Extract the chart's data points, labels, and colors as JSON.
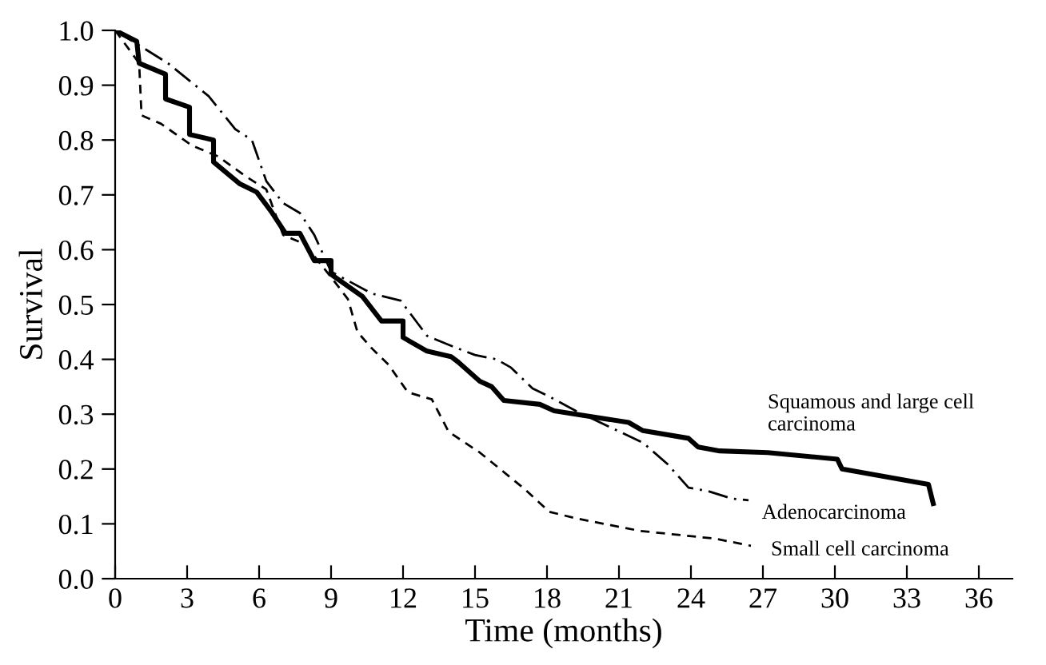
{
  "chart_data": {
    "type": "line",
    "xlabel": "Time (months)",
    "ylabel": "Survival",
    "xlim": [
      0,
      37.4
    ],
    "ylim": [
      0,
      1.0
    ],
    "xticks": [
      0,
      3,
      6,
      9,
      12,
      15,
      18,
      21,
      24,
      27,
      30,
      33,
      36
    ],
    "yticks": [
      {
        "value": 0,
        "label": "0.0"
      },
      {
        "value": 0.1,
        "label": "0.1"
      },
      {
        "value": 0.2,
        "label": "0.2"
      },
      {
        "value": 0.3,
        "label": "0.3"
      },
      {
        "value": 0.4,
        "label": "0.4"
      },
      {
        "value": 0.5,
        "label": "0.5"
      },
      {
        "value": 0.6,
        "label": "0.6"
      },
      {
        "value": 0.7,
        "label": "0.7"
      },
      {
        "value": 0.8,
        "label": "0.8"
      },
      {
        "value": 0.9,
        "label": "0.9"
      },
      {
        "value": 1,
        "label": "1.0"
      }
    ],
    "grid": false,
    "legend": false,
    "marker": "none",
    "series": [
      {
        "name": "Squamous and large cell carcinoma",
        "color": "#000000",
        "line_style": "solid",
        "x": [
          0,
          0.9,
          1,
          2.1,
          2.1,
          3.1,
          3.1,
          4.1,
          4.1,
          5.2,
          5.9,
          6.5,
          7.1,
          7.7,
          8.3,
          9,
          9,
          10.3,
          11.1,
          12,
          12,
          13,
          14,
          14.3,
          15.2,
          15.7,
          16.2,
          17.7,
          18.3,
          19.2,
          21.4,
          22,
          23.9,
          24.3,
          25.2,
          27.2,
          30.1,
          30.3,
          33.9,
          34.1
        ],
        "values": [
          1.0,
          0.98,
          0.94,
          0.92,
          0.875,
          0.86,
          0.81,
          0.8,
          0.76,
          0.72,
          0.705,
          0.67,
          0.63,
          0.63,
          0.58,
          0.58,
          0.555,
          0.515,
          0.47,
          0.47,
          0.44,
          0.415,
          0.405,
          0.395,
          0.36,
          0.35,
          0.325,
          0.318,
          0.306,
          0.3,
          0.285,
          0.27,
          0.256,
          0.24,
          0.233,
          0.23,
          0.218,
          0.2,
          0.172,
          0.137
        ]
      },
      {
        "name": "Adenocarcinoma",
        "color": "#000000",
        "line_style": "dashed",
        "x": [
          0,
          2.2,
          3.9,
          5,
          5.7,
          6.3,
          7,
          7.7,
          8.3,
          9,
          10.7,
          11.9,
          13,
          14.1,
          15,
          15.9,
          16.5,
          17.4,
          18.1,
          19.2,
          22,
          23,
          23.9,
          24.7,
          25.7,
          26.4
        ],
        "values": [
          1.0,
          0.94,
          0.88,
          0.82,
          0.8,
          0.725,
          0.685,
          0.667,
          0.627,
          0.56,
          0.52,
          0.507,
          0.443,
          0.423,
          0.408,
          0.4,
          0.385,
          0.347,
          0.332,
          0.306,
          0.248,
          0.21,
          0.166,
          0.16,
          0.146,
          0.143
        ]
      },
      {
        "name": "Small cell carcinoma",
        "color": "#000000",
        "line_style": "dashed",
        "x": [
          0,
          1,
          1.1,
          1.9,
          3.2,
          4.3,
          5.4,
          6.3,
          7,
          7.9,
          9,
          9.7,
          10.1,
          10.7,
          11.4,
          12.2,
          13.2,
          13.9,
          15.2,
          17,
          18.1,
          19.2,
          21.9,
          25,
          26.5
        ],
        "values": [
          1.0,
          0.94,
          0.845,
          0.83,
          0.79,
          0.77,
          0.735,
          0.71,
          0.627,
          0.61,
          0.55,
          0.51,
          0.45,
          0.42,
          0.39,
          0.34,
          0.327,
          0.268,
          0.23,
          0.166,
          0.122,
          0.11,
          0.087,
          0.073,
          0.06
        ]
      }
    ]
  }
}
